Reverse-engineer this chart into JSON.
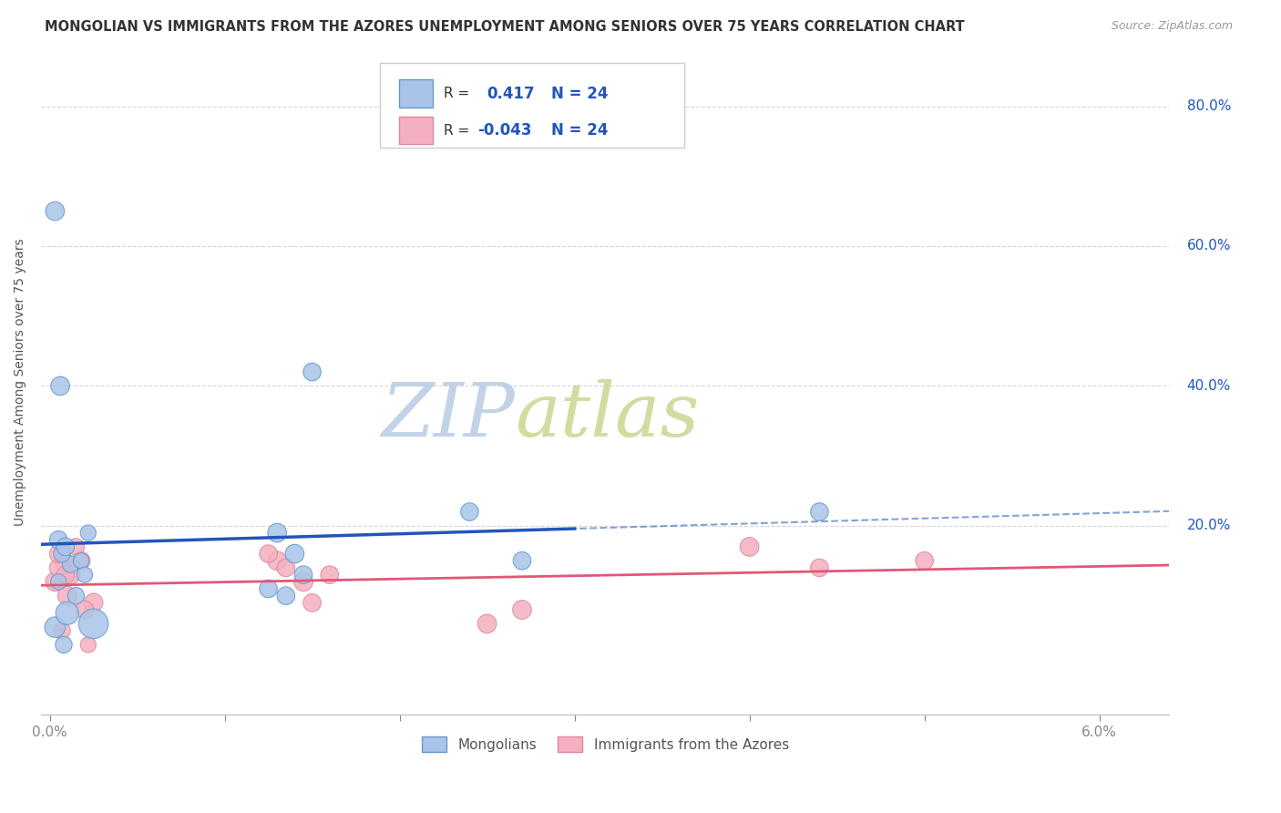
{
  "title": "MONGOLIAN VS IMMIGRANTS FROM THE AZORES UNEMPLOYMENT AMONG SENIORS OVER 75 YEARS CORRELATION CHART",
  "source": "Source: ZipAtlas.com",
  "ylabel": "Unemployment Among Seniors over 75 years",
  "mongolian_R": 0.417,
  "mongolian_N": 24,
  "azores_R": -0.043,
  "azores_N": 24,
  "mongolian_color": "#aac4e8",
  "mongolian_line_color": "#2255bb",
  "mongolian_edge_color": "#6699cc",
  "azores_color": "#f4b0c0",
  "azores_line_color": "#e05878",
  "azores_edge_color": "#dd8899",
  "watermark_zip_color": "#b8cce8",
  "watermark_atlas_color": "#c8d8a0",
  "background_color": "#ffffff",
  "grid_color": "#cccccc",
  "legend_R_color": "#333333",
  "legend_val_color": "#2255bb",
  "mongolian_x": [
    0.0003,
    0.0008,
    0.0015,
    0.0005,
    0.0012,
    0.0018,
    0.0007,
    0.0022,
    0.001,
    0.0025,
    0.0005,
    0.0009,
    0.002,
    0.014,
    0.013,
    0.0145,
    0.0125,
    0.0135,
    0.015,
    0.024,
    0.027,
    0.044,
    0.0003,
    0.0006
  ],
  "mongolian_y": [
    0.055,
    0.03,
    0.1,
    0.12,
    0.145,
    0.15,
    0.16,
    0.19,
    0.075,
    0.06,
    0.18,
    0.17,
    0.13,
    0.16,
    0.19,
    0.13,
    0.11,
    0.1,
    0.42,
    0.22,
    0.15,
    0.22,
    0.65,
    0.4
  ],
  "mongolian_sizes": [
    120,
    80,
    80,
    70,
    80,
    70,
    80,
    70,
    150,
    250,
    90,
    90,
    70,
    100,
    100,
    90,
    90,
    90,
    90,
    90,
    90,
    90,
    100,
    100
  ],
  "azores_x": [
    0.0003,
    0.0008,
    0.0015,
    0.0005,
    0.0012,
    0.0018,
    0.0007,
    0.0022,
    0.001,
    0.0025,
    0.0005,
    0.0009,
    0.002,
    0.013,
    0.0145,
    0.0125,
    0.0135,
    0.015,
    0.016,
    0.025,
    0.027,
    0.044,
    0.05,
    0.04
  ],
  "azores_y": [
    0.12,
    0.15,
    0.17,
    0.14,
    0.13,
    0.15,
    0.05,
    0.03,
    0.1,
    0.09,
    0.16,
    0.13,
    0.08,
    0.15,
    0.12,
    0.16,
    0.14,
    0.09,
    0.13,
    0.06,
    0.08,
    0.14,
    0.15,
    0.17
  ],
  "azores_sizes": [
    100,
    90,
    80,
    90,
    100,
    90,
    80,
    70,
    100,
    100,
    90,
    90,
    90,
    100,
    100,
    90,
    90,
    90,
    90,
    100,
    100,
    90,
    90,
    100
  ],
  "xlim": [
    -0.0005,
    0.064
  ],
  "ylim": [
    -0.07,
    0.88
  ],
  "ytick_vals": [
    0.2,
    0.4,
    0.6,
    0.8
  ],
  "ytick_labels": [
    "20.0%",
    "40.0%",
    "60.0%",
    "80.0%"
  ],
  "xtick_vals": [
    0.0,
    0.01,
    0.02,
    0.03,
    0.04,
    0.05,
    0.06
  ],
  "xtick_labels": [
    "0.0%",
    "",
    "",
    "",
    "",
    "",
    "6.0%"
  ]
}
